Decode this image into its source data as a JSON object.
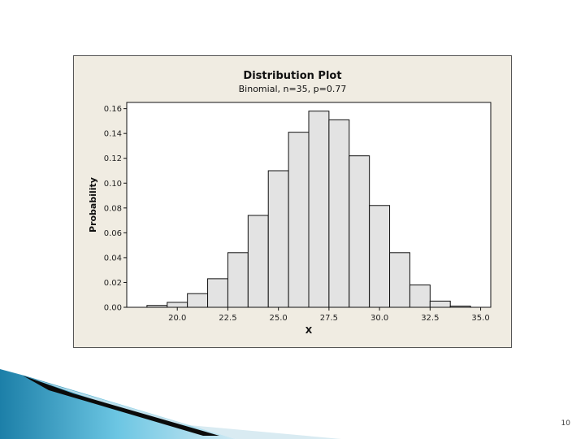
{
  "chart_data": {
    "type": "bar",
    "title": "Distribution Plot",
    "subtitle": "Binomial, n=35, p=0.77",
    "xlabel": "X",
    "ylabel": "Probability",
    "x": [
      19,
      20,
      21,
      22,
      23,
      24,
      25,
      26,
      27,
      28,
      29,
      30,
      31,
      32,
      33,
      34
    ],
    "values": [
      0.0015,
      0.004,
      0.011,
      0.023,
      0.044,
      0.074,
      0.11,
      0.141,
      0.158,
      0.151,
      0.122,
      0.082,
      0.044,
      0.018,
      0.005,
      0.001
    ],
    "xlim": [
      17.5,
      35.5
    ],
    "ylim": [
      0,
      0.165
    ],
    "xticks": [
      "20.0",
      "22.5",
      "25.0",
      "27.5",
      "30.0",
      "32.5",
      "35.0"
    ],
    "xtick_values": [
      20,
      22.5,
      25,
      27.5,
      30,
      32.5,
      35
    ],
    "yticks": [
      "0.00",
      "0.02",
      "0.04",
      "0.06",
      "0.08",
      "0.10",
      "0.12",
      "0.14",
      "0.16"
    ],
    "ytick_values": [
      0,
      0.02,
      0.04,
      0.06,
      0.08,
      0.1,
      0.12,
      0.14,
      0.16
    ],
    "bar_color": "#e3e3e3",
    "edge_color": "#111111",
    "background_color": "#f0ece2",
    "grid": false
  },
  "slide_number": "10"
}
